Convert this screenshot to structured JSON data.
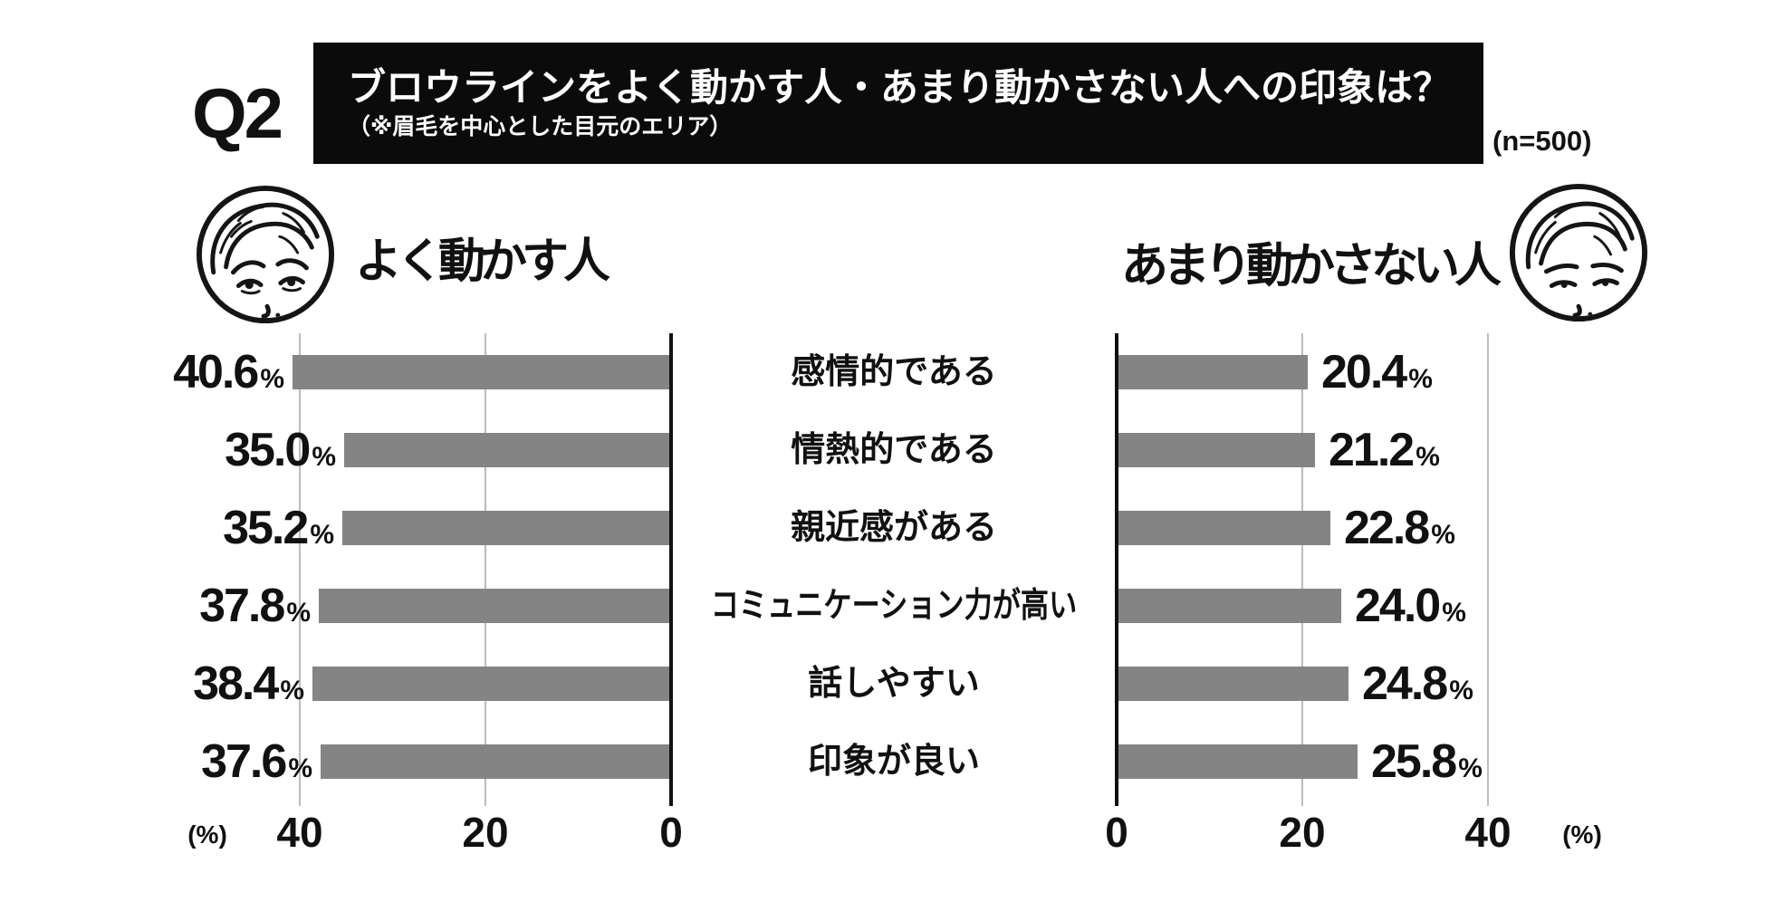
{
  "header": {
    "question_label": "Q2",
    "title": "ブロウラインをよく動かす人・あまり動かさない人への印象は？",
    "subtitle": "（※眉毛を中心とした目元のエリア）",
    "sample_size": "(n=500)"
  },
  "groups": {
    "left": {
      "label": "よく動かす人"
    },
    "right": {
      "label": "あまり動かさない人"
    }
  },
  "chart_data": {
    "type": "bar",
    "layout": "mirrored-horizontal",
    "title": "ブロウラインをよく動かす人・あまり動かさない人への印象は？",
    "categories": [
      "感情的である",
      "情熱的である",
      "親近感がある",
      "コミュニケーション力が高い",
      "話しやすい",
      "印象が良い"
    ],
    "series": [
      {
        "name": "よく動かす人",
        "side": "left",
        "values": [
          40.6,
          35.0,
          35.2,
          37.8,
          38.4,
          37.6
        ]
      },
      {
        "name": "あまり動かさない人",
        "side": "right",
        "values": [
          20.4,
          21.2,
          22.8,
          24.0,
          24.8,
          25.8
        ]
      }
    ],
    "value_suffix": "%",
    "axes": {
      "left_ticks": [
        40,
        20,
        0
      ],
      "right_ticks": [
        0,
        20,
        40
      ],
      "unit_label": "(%)",
      "xlim": [
        0,
        40
      ],
      "grid": true
    },
    "colors": {
      "bar": "#848484",
      "gridline": "#bcbcbc",
      "axis": "#111111",
      "banner_bg": "#0b0b0b",
      "banner_text": "#ffffff"
    }
  }
}
